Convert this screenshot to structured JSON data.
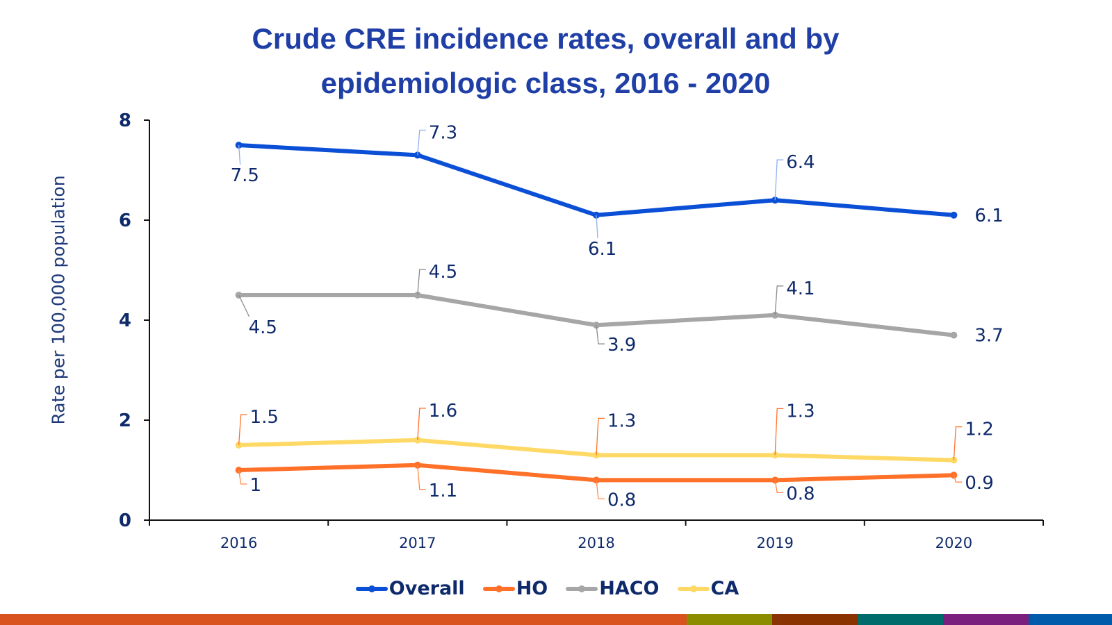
{
  "chart_data": {
    "type": "line",
    "title": "Crude CRE incidence rates, overall and by epidemiologic class, 2016 - 2020",
    "title_lines": [
      "Crude CRE incidence rates, overall and by",
      "epidemiologic class, 2016 - 2020"
    ],
    "xlabel": "",
    "ylabel": "Rate per 100,000 population",
    "x": [
      "2016",
      "2017",
      "2018",
      "2019",
      "2020"
    ],
    "ylim": [
      0,
      8
    ],
    "yticks": [
      "0",
      "2",
      "4",
      "6",
      "8"
    ],
    "grid": false,
    "legend_position": "bottom",
    "series": [
      {
        "name": "Overall",
        "color": "#0b4fd6",
        "values": [
          7.5,
          7.3,
          6.1,
          6.4,
          6.1
        ],
        "labels": [
          "7.5",
          "7.3",
          "6.1",
          "6.4",
          "6.1"
        ]
      },
      {
        "name": "HO",
        "color": "#ff7028",
        "values": [
          1.0,
          1.1,
          0.8,
          0.8,
          0.9
        ],
        "labels": [
          "1",
          "1.1",
          "0.8",
          "0.8",
          "0.9"
        ]
      },
      {
        "name": "HACO",
        "color": "#a6a6a6",
        "values": [
          4.5,
          4.5,
          3.9,
          4.1,
          3.7
        ],
        "labels": [
          "4.5",
          "4.5",
          "3.9",
          "4.1",
          "3.7"
        ]
      },
      {
        "name": "CA",
        "color": "#ffd966",
        "values": [
          1.5,
          1.6,
          1.3,
          1.3,
          1.2
        ],
        "labels": [
          "1.5",
          "1.6",
          "1.3",
          "1.3",
          "1.2"
        ]
      }
    ]
  },
  "footer_bar_colors": [
    "#d9531e",
    "#8c8c00",
    "#8b3300",
    "#006b6b",
    "#7b1f7f",
    "#005bab"
  ]
}
